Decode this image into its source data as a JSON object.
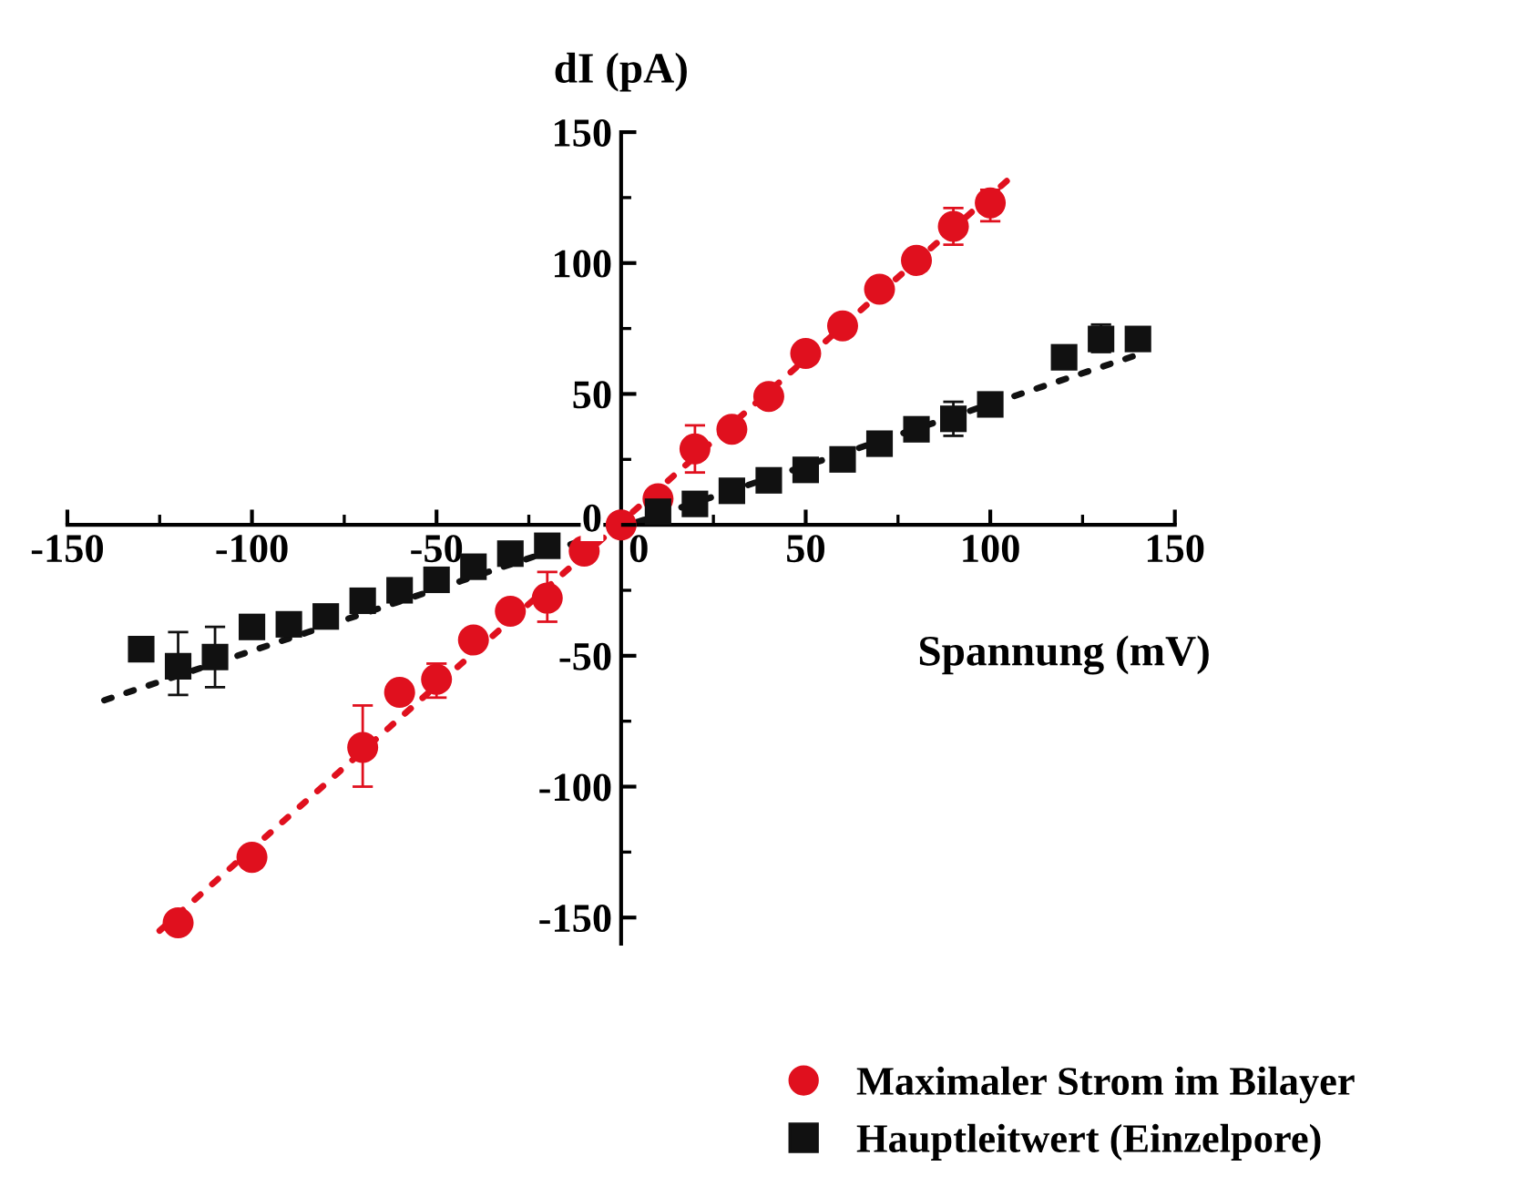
{
  "chart_data": {
    "type": "scatter",
    "xlabel": "Spannung (mV)",
    "ylabel": "dI (pA)",
    "xlim": [
      -150,
      150
    ],
    "ylim": [
      -160,
      150
    ],
    "xticks": [
      -150,
      -100,
      -50,
      0,
      50,
      100,
      150
    ],
    "yticks": [
      -150,
      -100,
      -50,
      0,
      50,
      100,
      150
    ],
    "grid": false,
    "legend": "bottom right",
    "series": [
      {
        "name": "Maximaler Strom im Bilayer",
        "color": "#e0101e",
        "marker": "circle",
        "x": [
          -120,
          -100,
          -70,
          -60,
          -50,
          -40,
          -30,
          -20,
          -10,
          0,
          10,
          20,
          30,
          40,
          50,
          60,
          70,
          80,
          90,
          100
        ],
        "values": [
          -152,
          -127,
          -85,
          -64,
          -59,
          -44,
          -33,
          -28,
          -10,
          0,
          10,
          29,
          36.5,
          49,
          65.5,
          76,
          90,
          101,
          114,
          123
        ],
        "errors": [
          null,
          null,
          [
            -100,
            -69
          ],
          null,
          [
            -66,
            -53
          ],
          null,
          null,
          [
            -37,
            -18
          ],
          null,
          null,
          null,
          [
            20,
            38
          ],
          null,
          null,
          null,
          null,
          null,
          null,
          [
            107,
            121
          ],
          [
            116,
            128
          ]
        ]
      },
      {
        "name": "Hauptleitwert (Einzelpore)",
        "color": "#111111",
        "marker": "square",
        "x": [
          -130,
          -120,
          -110,
          -100,
          -90,
          -80,
          -70,
          -60,
          -50,
          -40,
          -30,
          -20,
          10,
          20,
          30,
          40,
          50,
          60,
          70,
          80,
          90,
          100,
          120,
          130,
          140
        ],
        "values": [
          -47.5,
          -54,
          -50.5,
          -39,
          -38,
          -35,
          -29,
          -25,
          -21,
          -16,
          -11,
          -8,
          5,
          8,
          13,
          17,
          21,
          25,
          31,
          36.5,
          40.5,
          46,
          64,
          71,
          71
        ],
        "errors": [
          null,
          [
            -65,
            -41
          ],
          [
            -62,
            -39
          ],
          null,
          null,
          null,
          null,
          null,
          null,
          null,
          null,
          null,
          null,
          null,
          null,
          null,
          null,
          null,
          null,
          null,
          [
            34,
            47
          ],
          null,
          null,
          [
            66,
            76.5
          ],
          null
        ]
      },
      {
        "type": "line",
        "color": "#e0101e",
        "line_style": "dotted",
        "x": [
          -125,
          105
        ],
        "values": [
          -155,
          132
        ]
      },
      {
        "type": "line",
        "color": "#111111",
        "line_style": "dotted",
        "x": [
          -140,
          140
        ],
        "values": [
          -67,
          65
        ]
      }
    ]
  }
}
